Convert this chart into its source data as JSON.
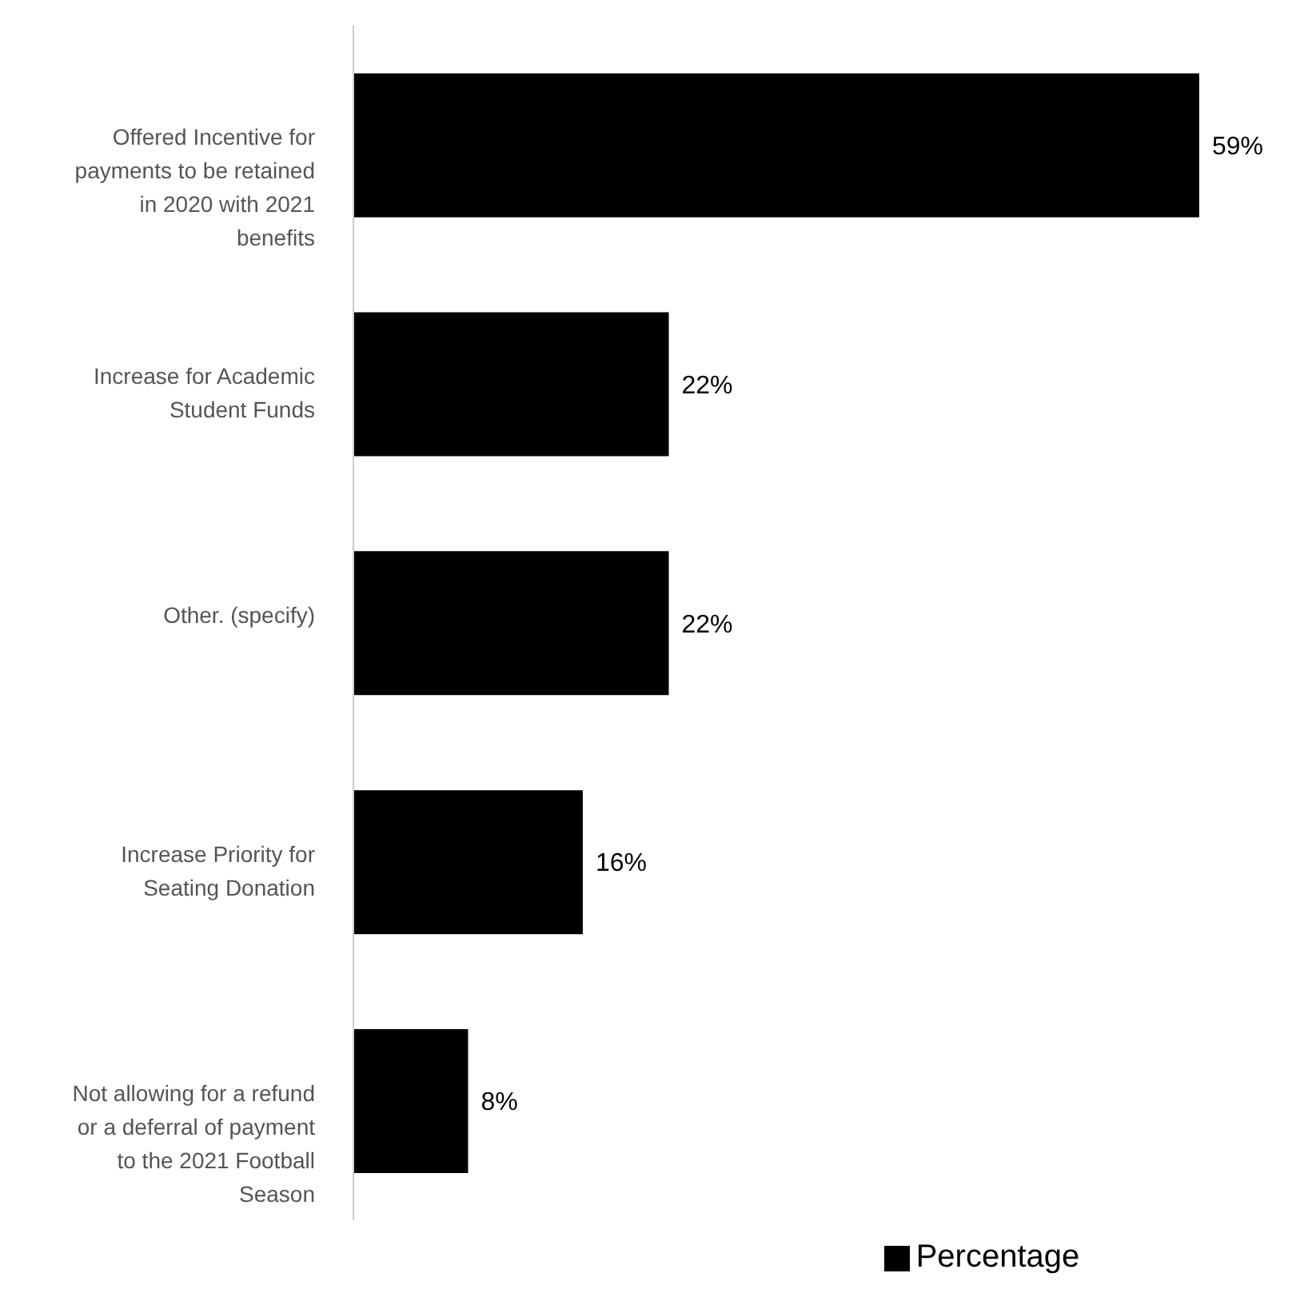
{
  "chart_data": {
    "type": "bar",
    "orientation": "horizontal",
    "categories": [
      "Offered Incentive for payments to be retained in 2020 with 2021 benefits",
      "Increase for Academic Student Funds",
      "Other. (specify)",
      "Increase Priority for Seating Donation",
      "Not allowing for a refund or a deferral of payment to the 2021 Football Season"
    ],
    "series": [
      {
        "name": "Percentage",
        "color": "#000000",
        "values": [
          59,
          22,
          22,
          16,
          8
        ],
        "value_labels": [
          "59%",
          "22%",
          "22%",
          "16%",
          "8%"
        ]
      }
    ],
    "legend": "bottom",
    "grid": false
  }
}
